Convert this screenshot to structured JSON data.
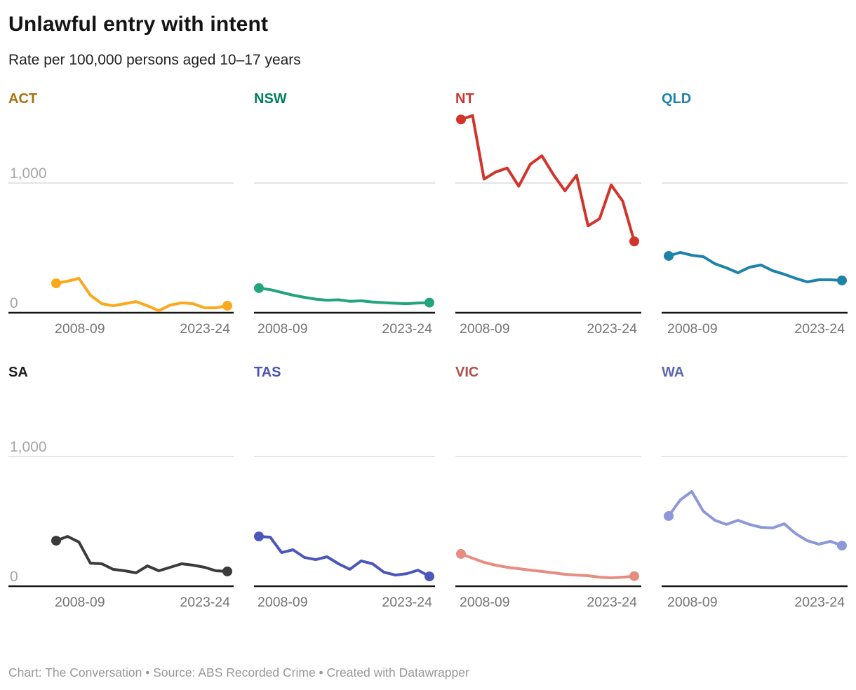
{
  "header": {
    "title": "Unlawful entry with intent",
    "subtitle": "Rate per 100,000 persons aged 10–17 years"
  },
  "footer": {
    "text": "Chart: The Conversation • Source: ABS Recorded Crime • Created with Datawrapper"
  },
  "chart_data": {
    "type": "line",
    "layout": "small multiples, 4 columns x 2 rows, shared axes",
    "title": "Unlawful entry with intent",
    "ylabel": "Rate per 100,000 persons aged 10–17 years",
    "x_tick_labels": [
      "2008-09",
      "2023-24"
    ],
    "x_range": [
      "2008-09",
      "2023-24"
    ],
    "n_points": 16,
    "ylim": [
      0,
      1600
    ],
    "y_gridlines": [
      {
        "value": 1000,
        "label": "1,000"
      },
      {
        "value": 0,
        "label": "0"
      }
    ],
    "y_labels_shown_on": "first column panels only (ACT, SA)",
    "panels": [
      {
        "state": "ACT",
        "header_color": "#A8700F",
        "line_color": "#FBA81C",
        "values": [
          227,
          243,
          265,
          135,
          70,
          54,
          70,
          86,
          54,
          16,
          59,
          76,
          70,
          38,
          38,
          54
        ]
      },
      {
        "state": "NSW",
        "header_color": "#008059",
        "line_color": "#22A47C",
        "values": [
          190,
          178,
          157,
          135,
          119,
          105,
          97,
          100,
          88,
          92,
          82,
          78,
          73,
          70,
          75,
          78
        ]
      },
      {
        "state": "NT",
        "header_color": "#CF352B",
        "line_color": "#D0342B",
        "values": [
          1490,
          1520,
          1030,
          1085,
          1115,
          975,
          1145,
          1210,
          1065,
          940,
          1060,
          670,
          725,
          985,
          860,
          550
        ]
      },
      {
        "state": "QLD",
        "header_color": "#1E83A9",
        "line_color": "#1E83A9",
        "values": [
          438,
          465,
          443,
          432,
          378,
          346,
          308,
          351,
          368,
          324,
          297,
          265,
          238,
          254,
          254,
          249
        ]
      },
      {
        "state": "SA",
        "header_color": "#1D1D1D",
        "line_color": "#3B3B3B",
        "values": [
          351,
          384,
          340,
          178,
          173,
          130,
          119,
          103,
          157,
          119,
          146,
          173,
          162,
          146,
          119,
          114
        ]
      },
      {
        "state": "TAS",
        "header_color": "#4A53B4",
        "line_color": "#4C57BB",
        "values": [
          384,
          378,
          259,
          281,
          222,
          205,
          227,
          173,
          130,
          195,
          173,
          108,
          86,
          97,
          124,
          76
        ]
      },
      {
        "state": "VIC",
        "header_color": "#AF5049",
        "line_color": "#E78C80",
        "values": [
          249,
          216,
          184,
          162,
          146,
          135,
          124,
          114,
          103,
          92,
          86,
          81,
          70,
          65,
          70,
          78
        ]
      },
      {
        "state": "WA",
        "header_color": "#5C68B0",
        "line_color": "#8D98D8",
        "values": [
          541,
          665,
          730,
          578,
          508,
          476,
          508,
          476,
          454,
          449,
          481,
          405,
          351,
          324,
          346,
          313
        ]
      }
    ]
  }
}
